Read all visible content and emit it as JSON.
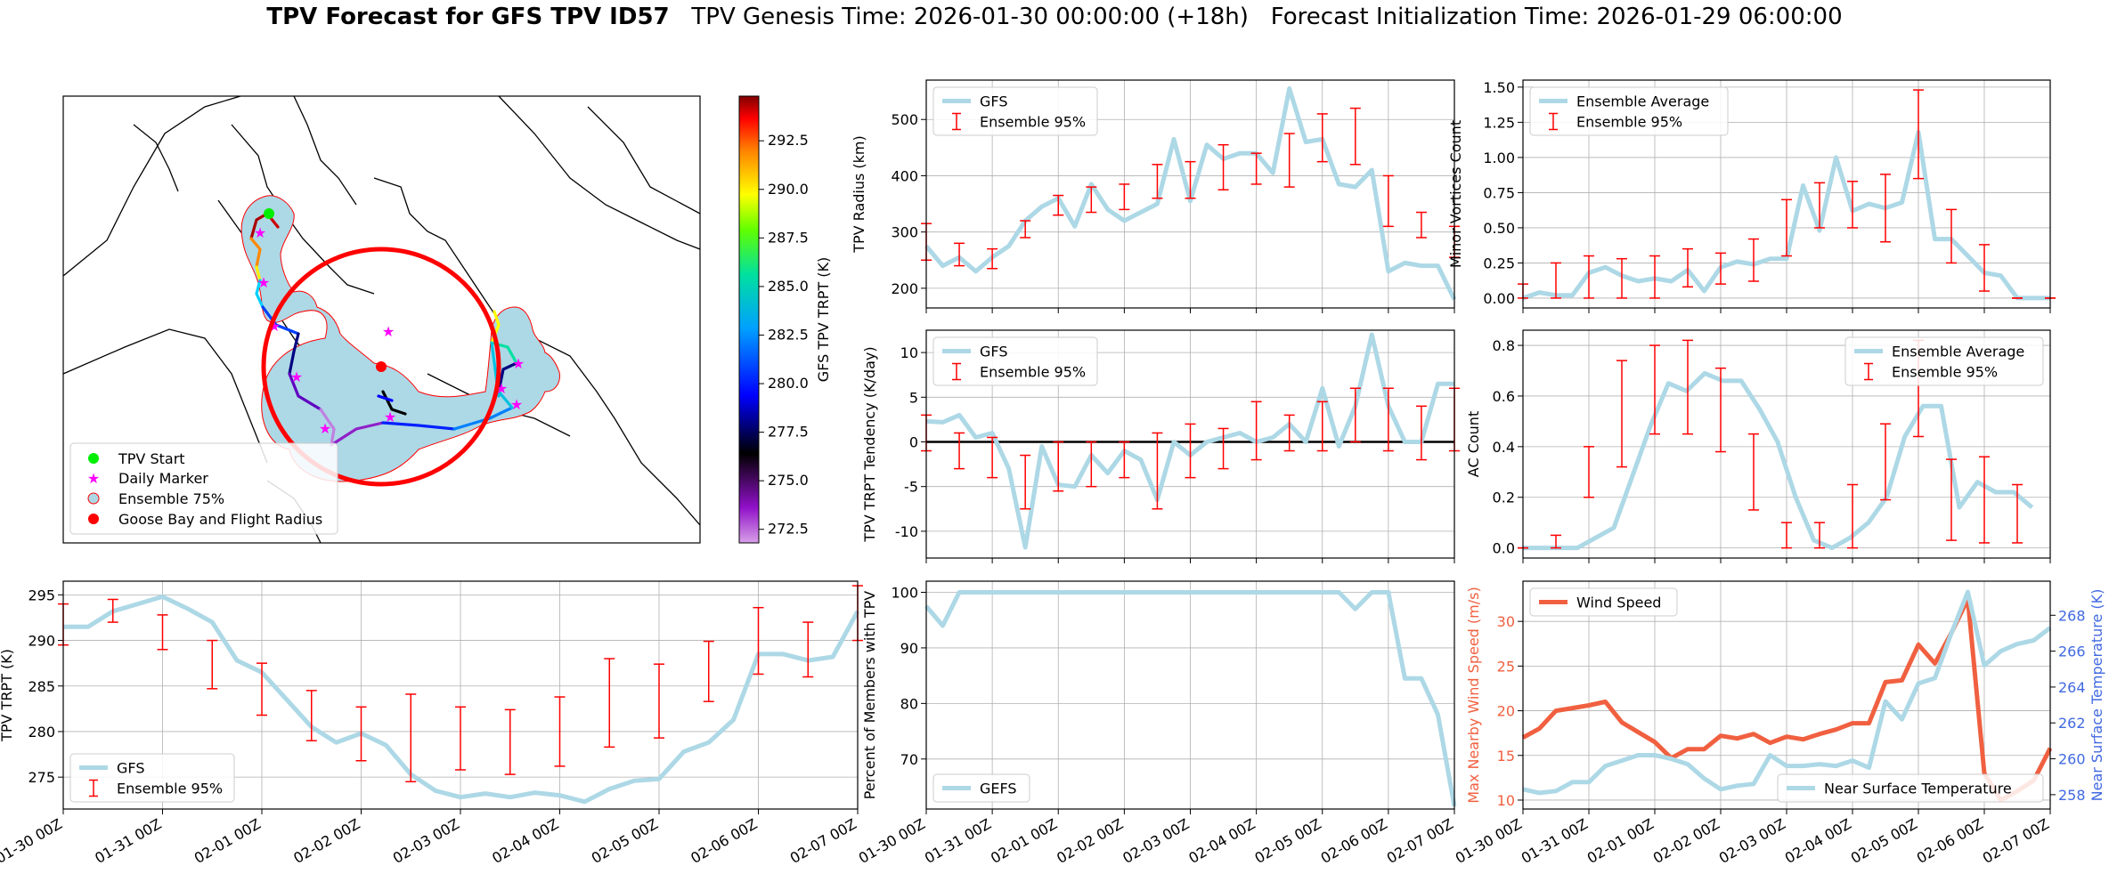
{
  "figure": {
    "title_bold": "TPV Forecast for GFS TPV ID57",
    "title_genesis": "TPV Genesis Time: 2026-01-30 00:00:00 (+18h)",
    "title_init": "Forecast Initialization Time: 2026-01-29 06:00:00",
    "date_ticks": [
      "01-30 00Z",
      "01-31 00Z",
      "02-01 00Z",
      "02-02 00Z",
      "02-03 00Z",
      "02-04 00Z",
      "02-05 00Z",
      "02-06 00Z",
      "02-07 00Z"
    ]
  },
  "colors": {
    "series": "#add8e6",
    "error": "#ff0000",
    "wind": "#f06040",
    "temp_label": "#4169e1",
    "grid": "#b0b0b0",
    "circle": "#ff0000",
    "start": "#00ee00",
    "marker": "#ff00ff"
  },
  "map": {
    "legend": [
      "TPV Start",
      "Daily Marker",
      "Ensemble 75%",
      "Goose Bay and Flight Radius"
    ],
    "colorbar_label": "GFS TPV TRPT (K)",
    "colorbar_ticks": [
      "292.5",
      "290.0",
      "287.5",
      "285.0",
      "282.5",
      "280.0",
      "277.5",
      "275.0",
      "272.5"
    ],
    "colorbar_range": [
      271.8,
      294.8
    ]
  },
  "chart_data": [
    {
      "id": "radius",
      "type": "line",
      "ylabel": "TPV Radius (km)",
      "ylim": [
        165,
        570
      ],
      "yticks": [
        200,
        300,
        400,
        500
      ],
      "legend": [
        "GFS",
        "Ensemble 95%"
      ],
      "legend_pos": "top-left",
      "series": [
        {
          "name": "GFS",
          "values": [
            275,
            240,
            255,
            230,
            255,
            275,
            320,
            345,
            360,
            310,
            385,
            340,
            320,
            335,
            350,
            465,
            355,
            455,
            430,
            440,
            440,
            405,
            555,
            460,
            465,
            385,
            380,
            410,
            230,
            245,
            240,
            240,
            180
          ]
        }
      ],
      "errorbars": [
        [
          0,
          250,
          315
        ],
        [
          1,
          240,
          280
        ],
        [
          2,
          235,
          270
        ],
        [
          3,
          290,
          320
        ],
        [
          4,
          330,
          365
        ],
        [
          5,
          335,
          380
        ],
        [
          6,
          340,
          385
        ],
        [
          7,
          360,
          420
        ],
        [
          8,
          360,
          425
        ],
        [
          9,
          375,
          455
        ],
        [
          10,
          385,
          440
        ],
        [
          11,
          380,
          475
        ],
        [
          12,
          425,
          510
        ],
        [
          13,
          420,
          520
        ],
        [
          14,
          310,
          400
        ],
        [
          15,
          290,
          335
        ],
        [
          16,
          255,
          310
        ]
      ],
      "err_offset": 0.5
    },
    {
      "id": "minor",
      "type": "line",
      "ylabel": "Minor Vortices Count",
      "ylim": [
        -0.07,
        1.55
      ],
      "yticks": [
        0.0,
        0.25,
        0.5,
        0.75,
        1.0,
        1.25,
        1.5
      ],
      "ytick_labels": [
        "0.00",
        "0.25",
        "0.50",
        "0.75",
        "1.00",
        "1.25",
        "1.50"
      ],
      "legend": [
        "Ensemble Average",
        "Ensemble 95%"
      ],
      "legend_pos": "top-left",
      "series": [
        {
          "name": "Ensemble Average",
          "values": [
            0,
            0.04,
            0.02,
            0.02,
            0.18,
            0.22,
            0.16,
            0.12,
            0.14,
            0.12,
            0.2,
            0.05,
            0.22,
            0.26,
            0.24,
            0.28,
            0.28,
            0.8,
            0.48,
            1.0,
            0.62,
            0.67,
            0.64,
            0.68,
            1.18,
            0.42,
            0.42,
            0.3,
            0.18,
            0.16,
            0,
            0,
            0
          ]
        }
      ],
      "errorbars": [
        [
          0,
          0,
          0.1
        ],
        [
          1,
          0,
          0.25
        ],
        [
          2,
          0,
          0.3
        ],
        [
          3,
          0,
          0.28
        ],
        [
          4,
          0,
          0.3
        ],
        [
          5,
          0.08,
          0.35
        ],
        [
          6,
          0.1,
          0.32
        ],
        [
          7,
          0.12,
          0.42
        ],
        [
          8,
          0.3,
          0.7
        ],
        [
          9,
          0.5,
          0.82
        ],
        [
          10,
          0.5,
          0.83
        ],
        [
          11,
          0.4,
          0.88
        ],
        [
          12,
          0.85,
          1.48
        ],
        [
          13,
          0.25,
          0.63
        ],
        [
          14,
          0.05,
          0.38
        ],
        [
          15,
          0,
          0
        ],
        [
          16,
          0,
          0
        ]
      ],
      "err_offset": 0.5
    },
    {
      "id": "tendency",
      "type": "line",
      "ylabel": "TPV TRPT Tendency (K/day)",
      "ylim": [
        -13,
        12.5
      ],
      "yticks": [
        -10,
        -5,
        0,
        5,
        10
      ],
      "legend": [
        "GFS",
        "Ensemble 95%"
      ],
      "legend_pos": "top-left",
      "zero_line": true,
      "series": [
        {
          "name": "GFS",
          "values": [
            2.3,
            2.2,
            3,
            0.5,
            1,
            -3,
            -11.8,
            -0.5,
            -4.8,
            -5,
            -1.5,
            -3.5,
            -1,
            -2,
            -6.5,
            0,
            -1.5,
            0,
            0.5,
            1,
            0,
            0.5,
            2,
            0,
            6,
            -0.5,
            4,
            12,
            4,
            0,
            0,
            6.5,
            6.5
          ]
        }
      ],
      "errorbars": [
        [
          0,
          -1,
          3
        ],
        [
          1,
          -3,
          1
        ],
        [
          2,
          -4,
          0.5
        ],
        [
          3,
          -7.5,
          -1.5
        ],
        [
          4,
          -5.5,
          0
        ],
        [
          5,
          -5,
          0
        ],
        [
          6,
          -4,
          0
        ],
        [
          7,
          -7.5,
          1
        ],
        [
          8,
          -4,
          2
        ],
        [
          9,
          -3,
          1.5
        ],
        [
          10,
          -2,
          4.5
        ],
        [
          11,
          -1,
          3
        ],
        [
          12,
          -1,
          4.5
        ],
        [
          13,
          0,
          6
        ],
        [
          14,
          -1,
          6
        ],
        [
          15,
          -2,
          4
        ],
        [
          16,
          -1,
          6
        ]
      ],
      "err_offset": 0.5
    },
    {
      "id": "ac",
      "type": "line",
      "ylabel": "AC Count",
      "ylim": [
        -0.04,
        0.86
      ],
      "yticks": [
        0.0,
        0.2,
        0.4,
        0.6,
        0.8
      ],
      "ytick_labels": [
        "0.0",
        "0.2",
        "0.4",
        "0.6",
        "0.8"
      ],
      "legend": [
        "Ensemble Average",
        "Ensemble 95%"
      ],
      "legend_pos": "top-right",
      "series": [
        {
          "name": "Ensemble Average",
          "values": [
            0,
            0,
            0,
            0,
            0.04,
            0.08,
            0.28,
            0.48,
            0.65,
            0.62,
            0.69,
            0.66,
            0.66,
            0.55,
            0.42,
            0.2,
            0.03,
            0,
            0.04,
            0.1,
            0.2,
            0.44,
            0.56,
            0.56,
            0.16,
            0.26,
            0.22,
            0.22,
            0.16
          ]
        }
      ],
      "xmax": 29,
      "errorbars": [
        [
          0,
          0,
          0
        ],
        [
          1,
          0,
          0.05
        ],
        [
          2,
          0.2,
          0.4
        ],
        [
          3,
          0.32,
          0.74
        ],
        [
          4,
          0.45,
          0.8
        ],
        [
          5,
          0.45,
          0.82
        ],
        [
          6,
          0.38,
          0.71
        ],
        [
          7,
          0.15,
          0.45
        ],
        [
          8,
          0,
          0.1
        ],
        [
          9,
          0,
          0.1
        ],
        [
          10,
          0,
          0.25
        ],
        [
          11,
          0.19,
          0.49
        ],
        [
          12,
          0.44,
          0.82
        ],
        [
          13,
          0.03,
          0.35
        ],
        [
          14,
          0.02,
          0.36
        ],
        [
          15,
          0.02,
          0.25
        ]
      ],
      "err_offset": 0.5
    },
    {
      "id": "trpt",
      "type": "line",
      "ylabel": "TPV TRPT (K)",
      "ylim": [
        271.5,
        296.5
      ],
      "yticks": [
        275,
        280,
        285,
        290,
        295
      ],
      "legend": [
        "GFS",
        "Ensemble 95%"
      ],
      "legend_pos": "bottom-left",
      "series": [
        {
          "name": "GFS",
          "values": [
            291.5,
            291.5,
            293.2,
            294,
            294.8,
            293.5,
            292,
            287.8,
            286.5,
            283.5,
            280.5,
            278.8,
            279.8,
            278.5,
            275.3,
            273.5,
            272.8,
            273.2,
            272.8,
            273.3,
            273,
            272.3,
            273.7,
            274.6,
            274.8,
            277.8,
            278.8,
            281.3,
            288.5,
            288.5,
            287.8,
            288.2,
            293.2
          ]
        }
      ],
      "errorbars": [
        [
          0,
          289.5,
          294
        ],
        [
          1,
          292,
          294.5
        ],
        [
          2,
          289,
          292.8
        ],
        [
          3,
          284.7,
          290
        ],
        [
          4,
          281.8,
          287.5
        ],
        [
          5,
          279,
          284.5
        ],
        [
          6,
          276.8,
          282.7
        ],
        [
          7,
          274.5,
          284.1
        ],
        [
          8,
          275.8,
          282.7
        ],
        [
          9,
          275.3,
          282.4
        ],
        [
          10,
          276.2,
          283.8
        ],
        [
          11,
          278.3,
          288
        ],
        [
          12,
          279.3,
          287.4
        ],
        [
          13,
          283.3,
          289.9
        ],
        [
          14,
          286.3,
          293.6
        ],
        [
          15,
          286,
          292
        ],
        [
          16,
          290,
          296
        ]
      ],
      "err_offset": 0.5
    },
    {
      "id": "percent",
      "type": "line",
      "ylabel": "Percent of Members with TPV",
      "ylim": [
        61,
        102
      ],
      "yticks": [
        70,
        80,
        90,
        100
      ],
      "legend": [
        "GEFS"
      ],
      "legend_pos": "bottom-left",
      "series": [
        {
          "name": "GEFS",
          "values": [
            97.5,
            94,
            100,
            100,
            100,
            100,
            100,
            100,
            100,
            100,
            100,
            100,
            100,
            100,
            100,
            100,
            100,
            100,
            100,
            100,
            100,
            100,
            100,
            100,
            100,
            100,
            97,
            100,
            100,
            84.5,
            84.5,
            78,
            61.5
          ]
        }
      ]
    },
    {
      "id": "wind",
      "type": "line",
      "ylabel": "Max Nearby Wind Speed (m/s)",
      "ylabel_right": "Near Surface Temperature (K)",
      "ylim": [
        9,
        34.5
      ],
      "yticks": [
        10,
        15,
        20,
        25,
        30
      ],
      "ylim_right": [
        257.2,
        269.9
      ],
      "yticks_right": [
        258,
        260,
        262,
        264,
        266,
        268
      ],
      "legend": [
        "Wind Speed"
      ],
      "legend_right": [
        "Near Surface Temperature"
      ],
      "series": [
        {
          "name": "Wind Speed",
          "values": [
            17,
            18,
            20,
            20.3,
            20.6,
            21,
            18.7,
            17.6,
            16.5,
            14.7,
            15.7,
            15.7,
            17.2,
            16.9,
            17.4,
            16.4,
            17.1,
            16.8,
            17.4,
            17.9,
            18.6,
            18.6,
            23.2,
            23.4,
            27.4,
            25.3,
            28.7,
            32.5,
            13,
            10,
            11,
            12.2,
            15.8
          ]
        },
        {
          "name": "Near Surface Temperature",
          "values": [
            258.3,
            258.1,
            258.2,
            258.7,
            258.7,
            259.6,
            259.9,
            260.2,
            260.2,
            260,
            259.7,
            258.9,
            258.3,
            258.5,
            258.6,
            260.2,
            259.6,
            259.6,
            259.7,
            259.6,
            259.9,
            259.5,
            263.2,
            262.2,
            264.2,
            264.5,
            267,
            269.3,
            265.2,
            266,
            266.4,
            266.6,
            267.3
          ],
          "axis": "right"
        }
      ]
    }
  ]
}
